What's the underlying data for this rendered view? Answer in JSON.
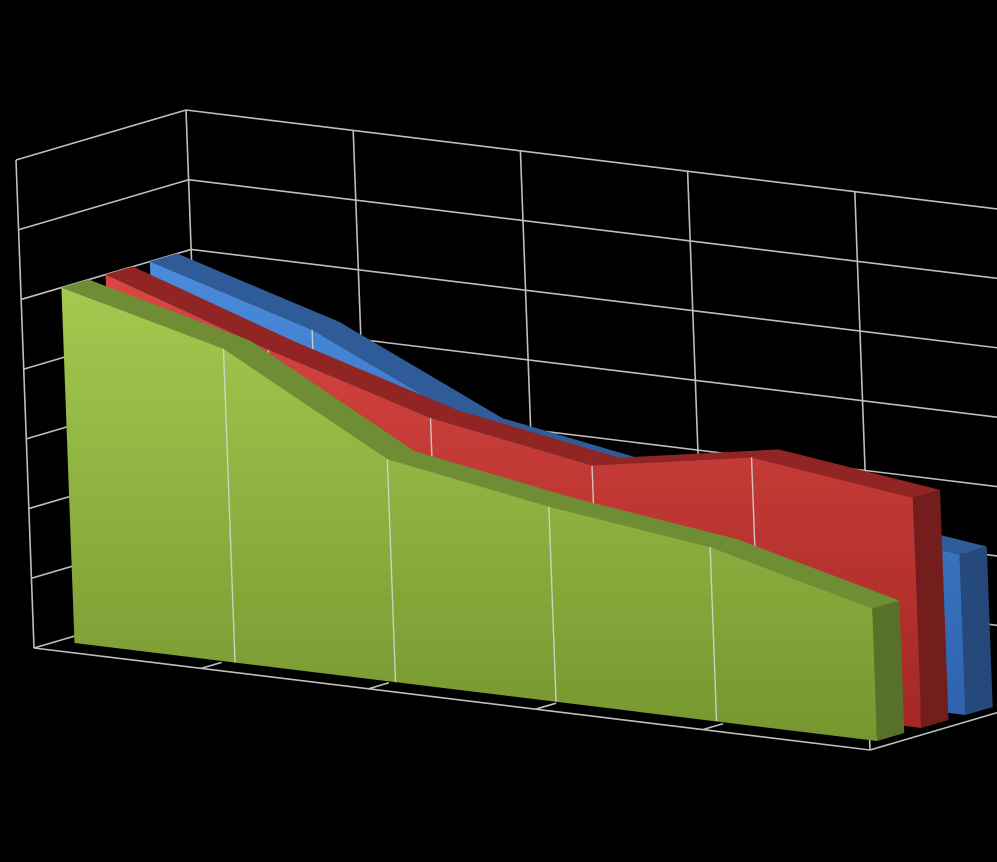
{
  "chart_data": {
    "type": "area",
    "style": "3d",
    "categories": [
      "",
      "",
      "",
      "",
      "",
      ""
    ],
    "series": [
      {
        "values": [
          5.1,
          4.4,
          3.3,
          2.9,
          2.6,
          2.3
        ],
        "color": "#3E7ACB"
      },
      {
        "values": [
          5.1,
          4.3,
          3.6,
          3.2,
          3.6,
          3.3
        ],
        "color": "#C0312F"
      },
      {
        "values": [
          5.1,
          4.5,
          3.2,
          2.8,
          2.5,
          1.9
        ],
        "color": "#93BC45"
      }
    ],
    "ylim": [
      0,
      7
    ],
    "grid": true,
    "legend": "none",
    "background": "#000000",
    "gridline_color": "#BFBFBF"
  }
}
